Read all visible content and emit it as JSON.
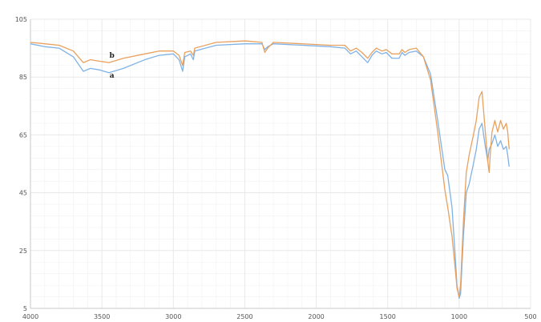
{
  "chart_data": {
    "type": "line",
    "title": "",
    "xlabel": "",
    "ylabel": "",
    "xlim": [
      4000,
      500
    ],
    "ylim": [
      5,
      105
    ],
    "x_ticks": [
      "4000",
      "3500",
      "3000",
      "2500",
      "2000",
      "1500",
      "1000",
      "500"
    ],
    "y_ticks": [
      "105",
      "85",
      "65",
      "45",
      "25",
      "5"
    ],
    "grid": true,
    "colors": {
      "a": "#7fb2e5",
      "b": "#e8a15e",
      "grid": "#e9e9e9",
      "axis": "#c8c8c8"
    },
    "series": [
      {
        "name": "a",
        "color": "#7fb2e5",
        "points": [
          [
            4000,
            96.5
          ],
          [
            3900,
            95.5
          ],
          [
            3800,
            95
          ],
          [
            3700,
            92
          ],
          [
            3630,
            87
          ],
          [
            3580,
            88
          ],
          [
            3520,
            87.5
          ],
          [
            3450,
            86.5
          ],
          [
            3350,
            88
          ],
          [
            3200,
            91
          ],
          [
            3100,
            92.5
          ],
          [
            3000,
            93
          ],
          [
            2960,
            91
          ],
          [
            2935,
            87
          ],
          [
            2920,
            92
          ],
          [
            2880,
            93
          ],
          [
            2860,
            91
          ],
          [
            2850,
            94
          ],
          [
            2700,
            96
          ],
          [
            2500,
            96.5
          ],
          [
            2380,
            96.5
          ],
          [
            2360,
            94.5
          ],
          [
            2340,
            95.5
          ],
          [
            2300,
            96.5
          ],
          [
            2100,
            96
          ],
          [
            1900,
            95.5
          ],
          [
            1800,
            95
          ],
          [
            1760,
            93
          ],
          [
            1720,
            94
          ],
          [
            1680,
            92
          ],
          [
            1640,
            90
          ],
          [
            1610,
            92.5
          ],
          [
            1580,
            94
          ],
          [
            1540,
            93
          ],
          [
            1510,
            93.5
          ],
          [
            1470,
            91.5
          ],
          [
            1420,
            91.5
          ],
          [
            1400,
            93.5
          ],
          [
            1380,
            92.5
          ],
          [
            1350,
            93.5
          ],
          [
            1300,
            94
          ],
          [
            1250,
            92
          ],
          [
            1200,
            86
          ],
          [
            1150,
            70
          ],
          [
            1100,
            53
          ],
          [
            1080,
            51
          ],
          [
            1050,
            40
          ],
          [
            1030,
            25
          ],
          [
            1015,
            13
          ],
          [
            1000,
            8.5
          ],
          [
            990,
            10
          ],
          [
            970,
            30
          ],
          [
            950,
            45
          ],
          [
            930,
            48
          ],
          [
            900,
            55
          ],
          [
            880,
            60
          ],
          [
            860,
            67
          ],
          [
            840,
            69
          ],
          [
            820,
            62
          ],
          [
            800,
            56
          ],
          [
            790,
            60
          ],
          [
            770,
            62
          ],
          [
            750,
            65
          ],
          [
            730,
            61
          ],
          [
            710,
            63
          ],
          [
            690,
            60
          ],
          [
            670,
            61
          ],
          [
            660,
            58
          ],
          [
            650,
            54
          ]
        ]
      },
      {
        "name": "b",
        "color": "#e8a15e",
        "points": [
          [
            4000,
            97
          ],
          [
            3900,
            96.5
          ],
          [
            3800,
            96
          ],
          [
            3700,
            94
          ],
          [
            3630,
            90
          ],
          [
            3580,
            91
          ],
          [
            3520,
            90.5
          ],
          [
            3450,
            90
          ],
          [
            3350,
            91.5
          ],
          [
            3200,
            93
          ],
          [
            3100,
            94
          ],
          [
            3000,
            94
          ],
          [
            2960,
            92.5
          ],
          [
            2935,
            89
          ],
          [
            2920,
            93.5
          ],
          [
            2880,
            94
          ],
          [
            2860,
            92.5
          ],
          [
            2850,
            95
          ],
          [
            2700,
            97
          ],
          [
            2500,
            97.5
          ],
          [
            2380,
            97
          ],
          [
            2360,
            93.5
          ],
          [
            2340,
            95
          ],
          [
            2300,
            97
          ],
          [
            2100,
            96.5
          ],
          [
            1900,
            96
          ],
          [
            1800,
            96
          ],
          [
            1760,
            94
          ],
          [
            1720,
            95
          ],
          [
            1680,
            93.5
          ],
          [
            1640,
            91.5
          ],
          [
            1610,
            93.5
          ],
          [
            1580,
            95
          ],
          [
            1540,
            94
          ],
          [
            1510,
            94.5
          ],
          [
            1470,
            93
          ],
          [
            1420,
            93
          ],
          [
            1400,
            94.5
          ],
          [
            1380,
            93.5
          ],
          [
            1350,
            94.5
          ],
          [
            1300,
            95
          ],
          [
            1250,
            92
          ],
          [
            1200,
            84
          ],
          [
            1150,
            66
          ],
          [
            1100,
            46
          ],
          [
            1080,
            40
          ],
          [
            1050,
            30
          ],
          [
            1030,
            20
          ],
          [
            1015,
            12
          ],
          [
            1000,
            9
          ],
          [
            990,
            13
          ],
          [
            970,
            35
          ],
          [
            950,
            52
          ],
          [
            930,
            58
          ],
          [
            900,
            65
          ],
          [
            880,
            70
          ],
          [
            860,
            78
          ],
          [
            840,
            80
          ],
          [
            820,
            68
          ],
          [
            800,
            56
          ],
          [
            790,
            52
          ],
          [
            780,
            60
          ],
          [
            770,
            66
          ],
          [
            750,
            70
          ],
          [
            730,
            66
          ],
          [
            710,
            70
          ],
          [
            690,
            67
          ],
          [
            670,
            69
          ],
          [
            660,
            66
          ],
          [
            650,
            60
          ]
        ]
      }
    ]
  }
}
